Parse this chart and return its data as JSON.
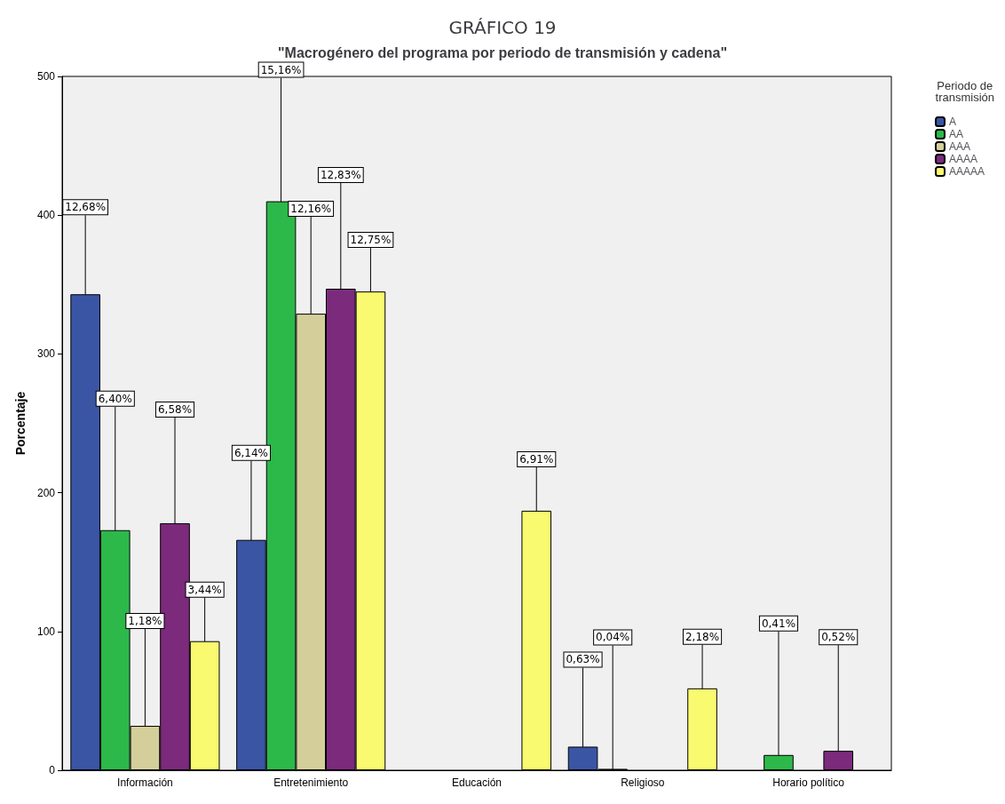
{
  "chart_data": {
    "type": "bar",
    "title": "GRÁFICO 19",
    "subtitle": "\"Macrogénero del programa por periodo de transmisión y cadena\"",
    "ylabel": "Porcentaje",
    "legend_title": "Periodo de transmisión",
    "categories": [
      "Información",
      "Entretenimiento",
      "Educación",
      "Religioso",
      "Horario político"
    ],
    "series": [
      {
        "name": "A",
        "color": "#3b55a5",
        "values": [
          343,
          166,
          null,
          17,
          null
        ]
      },
      {
        "name": "AA",
        "color": "#2db84a",
        "values": [
          173,
          410,
          null,
          1,
          11
        ]
      },
      {
        "name": "AAA",
        "color": "#d4cf9a",
        "values": [
          32,
          329,
          null,
          null,
          null
        ]
      },
      {
        "name": "AAAA",
        "color": "#7b2a7c",
        "values": [
          178,
          347,
          null,
          null,
          14
        ]
      },
      {
        "name": "AAAAA",
        "color": "#fafa70",
        "values": [
          93,
          345,
          187,
          59,
          null
        ]
      }
    ],
    "annotations": [
      {
        "text": "12,68%",
        "y": 343
      },
      {
        "text": "6,40%",
        "y": 173
      },
      {
        "text": "1,18%",
        "y": 32
      },
      {
        "text": "6,58%",
        "y": 178
      },
      {
        "text": "3,44%",
        "y": 93
      },
      {
        "text": "6,14%",
        "y": 166
      },
      {
        "text": "15,16%",
        "y": 410
      },
      {
        "text": "12,16%",
        "y": 329
      },
      {
        "text": "12,83%",
        "y": 347
      },
      {
        "text": "12,75%",
        "y": 345
      },
      {
        "text": "6,91%",
        "y": 187
      },
      {
        "text": "0,63%",
        "y": 17
      },
      {
        "text": "0,04%",
        "y": 1
      },
      {
        "text": "2,18%",
        "y": 59
      },
      {
        "text": "0,41%",
        "y": 11
      },
      {
        "text": "0,52%",
        "y": 14
      }
    ],
    "ylim": [
      0,
      500
    ],
    "yticks": [
      0,
      100,
      200,
      300,
      400,
      500
    ],
    "grid": false,
    "legend": "top right"
  }
}
